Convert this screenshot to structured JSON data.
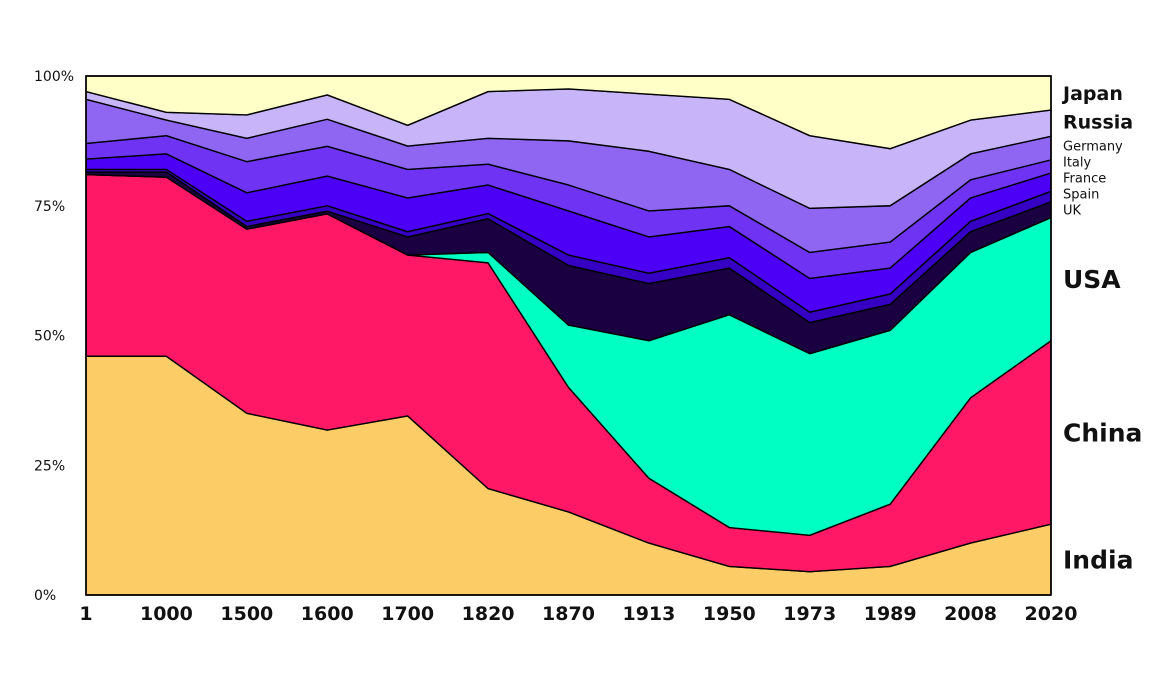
{
  "chart_data": {
    "type": "area",
    "stacked": true,
    "normalized": true,
    "x": [
      "1",
      "1000",
      "1500",
      "1600",
      "1700",
      "1820",
      "1870",
      "1913",
      "1950",
      "1973",
      "1989",
      "2008",
      "2020"
    ],
    "y_ticks": [
      "0%",
      "25%",
      "50%",
      "75%",
      "100%"
    ],
    "ylim": [
      0,
      100
    ],
    "series": [
      {
        "name": "India",
        "color": "#fccc66",
        "values": [
          46,
          46,
          35,
          30.5,
          34.5,
          20.5,
          16,
          10,
          5.5,
          4.5,
          5.5,
          10,
          13.5
        ]
      },
      {
        "name": "China",
        "color": "#ff1865",
        "values": [
          35,
          34.5,
          35.5,
          40,
          31,
          43.5,
          24,
          12.5,
          7.5,
          7,
          12,
          28,
          35
        ]
      },
      {
        "name": "USA",
        "color": "#00ffc2",
        "values": [
          0,
          0,
          0,
          0,
          0,
          2,
          12,
          26.5,
          41,
          35,
          33.5,
          28,
          23.5
        ]
      },
      {
        "name": "UK",
        "color": "#1a0040",
        "values": [
          0.5,
          1,
          0.5,
          0.5,
          3.5,
          6.5,
          11.5,
          11,
          9,
          6,
          5,
          4,
          3
        ]
      },
      {
        "name": "Spain",
        "color": "#3600c4",
        "values": [
          0.5,
          0.5,
          1,
          1,
          1,
          1,
          2,
          2,
          2,
          2,
          2,
          2,
          2
        ]
      },
      {
        "name": "France",
        "color": "#4c00f5",
        "values": [
          2,
          3,
          5.5,
          5.5,
          6.5,
          5.5,
          8.5,
          7,
          6,
          6.5,
          5,
          4.5,
          3.5
        ]
      },
      {
        "name": "Italy",
        "color": "#6f34f3",
        "values": [
          3,
          3.5,
          6,
          5.5,
          5.5,
          4,
          5,
          5,
          4,
          5,
          5,
          3.5,
          2.5
        ]
      },
      {
        "name": "Germany",
        "color": "#8f66f2",
        "values": [
          8.5,
          3,
          4.5,
          5,
          4.5,
          5,
          8.5,
          11.5,
          7,
          8.5,
          7,
          5,
          4.5
        ]
      },
      {
        "name": "Russia",
        "color": "#c8b4f9",
        "values": [
          1.5,
          1.5,
          4.5,
          4.5,
          4,
          9,
          10,
          11,
          13.5,
          14,
          11,
          6.5,
          5
        ]
      },
      {
        "name": "Japan",
        "color": "#ffffc8",
        "values": [
          3,
          7,
          7.5,
          3.5,
          9.5,
          3,
          2.5,
          3.5,
          4.5,
          11.5,
          14,
          8.5,
          6.5
        ]
      }
    ]
  }
}
